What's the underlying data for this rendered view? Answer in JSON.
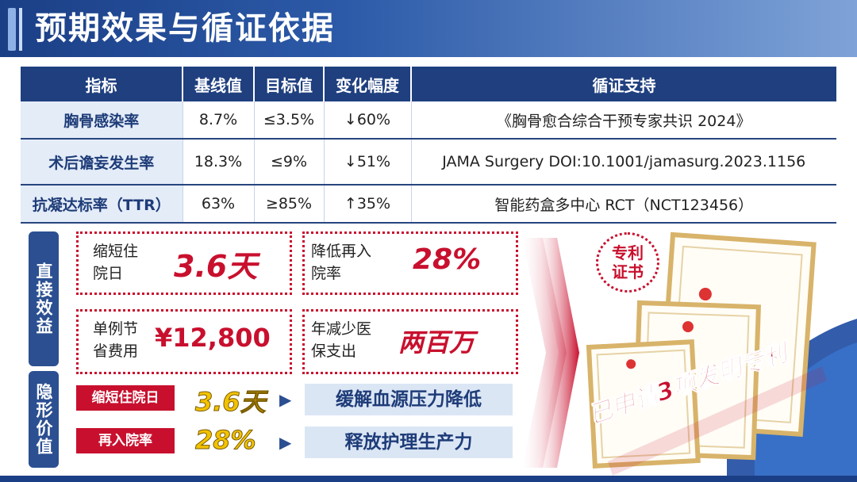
{
  "header": {
    "title": "预期效果与循证依据"
  },
  "table": {
    "headers": [
      "指标",
      "基线值",
      "目标值",
      "变化幅度",
      "循证支持"
    ],
    "rows": [
      {
        "metric": "胸骨感染率",
        "baseline": "8.7%",
        "target": "≤3.5%",
        "change": "↓60%",
        "evidence": "《胸骨愈合综合干预专家共识 2024》"
      },
      {
        "metric": "术后谵妄发生率",
        "baseline": "18.3%",
        "target": "≤9%",
        "change": "↓51%",
        "evidence": "JAMA Surgery DOI:10.1001/jamasurg.2023.1156"
      },
      {
        "metric": "抗凝达标率（TTR）",
        "baseline": "63%",
        "target": "≥85%",
        "change": "↑35%",
        "evidence": "智能药盒多中心 RCT（NCT123456）"
      }
    ]
  },
  "direct_benefit": {
    "label": "直接效益",
    "cards": [
      {
        "label_line1": "缩短住",
        "label_line2": "院日",
        "value": "3.6天"
      },
      {
        "label_line1": "降低再入",
        "label_line2": "院率",
        "value": "28%"
      },
      {
        "label_line1": "单例节",
        "label_line2": "省费用",
        "value": "¥12,800"
      },
      {
        "label_line1": "年减少医",
        "label_line2": "保支出",
        "value": "两百万"
      }
    ]
  },
  "hidden_value": {
    "label": "隐形价值",
    "rows": [
      {
        "tag": "缩短住院日",
        "value": "3.6天",
        "result": "缓解血源压力降低"
      },
      {
        "tag": "再入院率",
        "value": "28%",
        "result": "释放护理生产力"
      }
    ]
  },
  "patent": {
    "badge_line1": "专利",
    "badge_line2": "证书",
    "banner": "已申请3项发明专利"
  },
  "colors": {
    "primary": "#1f3f7f",
    "accent": "#c8102e",
    "highlight": "#f2c200"
  }
}
